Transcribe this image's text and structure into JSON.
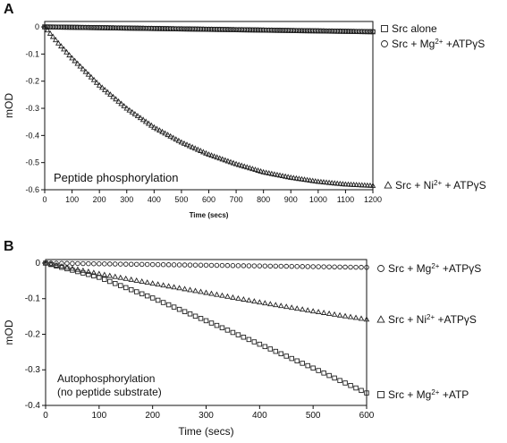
{
  "chart_data": [
    {
      "type": "scatter",
      "panel_label": "A",
      "title": "",
      "xlabel": "Time (secs)",
      "ylabel": "mOD",
      "xlim": [
        0,
        1200
      ],
      "ylim": [
        -0.6,
        0.02
      ],
      "xticks": [
        "0",
        "100",
        "200",
        "300",
        "400",
        "500",
        "600",
        "700",
        "800",
        "900",
        "1000",
        "1100",
        "1200"
      ],
      "yticks": [
        "0",
        "-0.1",
        "-0.2",
        "-0.3",
        "-0.4",
        "-0.5",
        "-0.6"
      ],
      "annotation": "Peptide phosphorylation",
      "grid": false,
      "legend_position": "right",
      "series": [
        {
          "name": "Src alone",
          "marker": "square",
          "x": [
            0,
            200,
            400,
            600,
            800,
            1000,
            1200
          ],
          "y": [
            0,
            -0.003,
            -0.006,
            -0.009,
            -0.012,
            -0.015,
            -0.018
          ]
        },
        {
          "name": "Src + Mg²⁺ +ATPγS",
          "marker": "circle",
          "x": [
            0,
            200,
            400,
            600,
            800,
            1000,
            1200
          ],
          "y": [
            0,
            -0.002,
            -0.005,
            -0.008,
            -0.011,
            -0.014,
            -0.017
          ]
        },
        {
          "name": "Src + Ni²⁺ + ATPγS",
          "marker": "triangle",
          "x": [
            0,
            50,
            100,
            200,
            300,
            400,
            500,
            600,
            700,
            800,
            900,
            1000,
            1100,
            1200
          ],
          "y": [
            0,
            -0.06,
            -0.115,
            -0.215,
            -0.3,
            -0.37,
            -0.425,
            -0.47,
            -0.505,
            -0.535,
            -0.555,
            -0.57,
            -0.58,
            -0.585
          ]
        }
      ]
    },
    {
      "type": "scatter",
      "panel_label": "B",
      "title": "",
      "xlabel": "Time (secs)",
      "ylabel": "mOD",
      "xlim": [
        0,
        600
      ],
      "ylim": [
        -0.4,
        0.01
      ],
      "xticks": [
        "0",
        "100",
        "200",
        "300",
        "400",
        "500",
        "600"
      ],
      "yticks": [
        "0",
        "-0.1",
        "-0.2",
        "-0.3",
        "-0.4"
      ],
      "annotation": [
        "Autophosphorylation",
        "(no peptide substrate)"
      ],
      "grid": false,
      "legend_position": "right",
      "series": [
        {
          "name": "Src + Mg²⁺ +ATPγS",
          "marker": "circle",
          "x": [
            0,
            100,
            200,
            300,
            400,
            500,
            600
          ],
          "y": [
            0,
            -0.002,
            -0.004,
            -0.006,
            -0.008,
            -0.01,
            -0.012
          ]
        },
        {
          "name": "Src + Ni²⁺ +ATPγS",
          "marker": "triangle",
          "x": [
            0,
            100,
            200,
            300,
            400,
            500,
            600
          ],
          "y": [
            0,
            -0.03,
            -0.057,
            -0.083,
            -0.11,
            -0.135,
            -0.158
          ]
        },
        {
          "name": "Src + Mg²⁺ +ATP",
          "marker": "square",
          "x": [
            0,
            100,
            200,
            300,
            400,
            500,
            600
          ],
          "y": [
            0,
            -0.04,
            -0.098,
            -0.162,
            -0.228,
            -0.295,
            -0.365
          ]
        }
      ]
    }
  ]
}
